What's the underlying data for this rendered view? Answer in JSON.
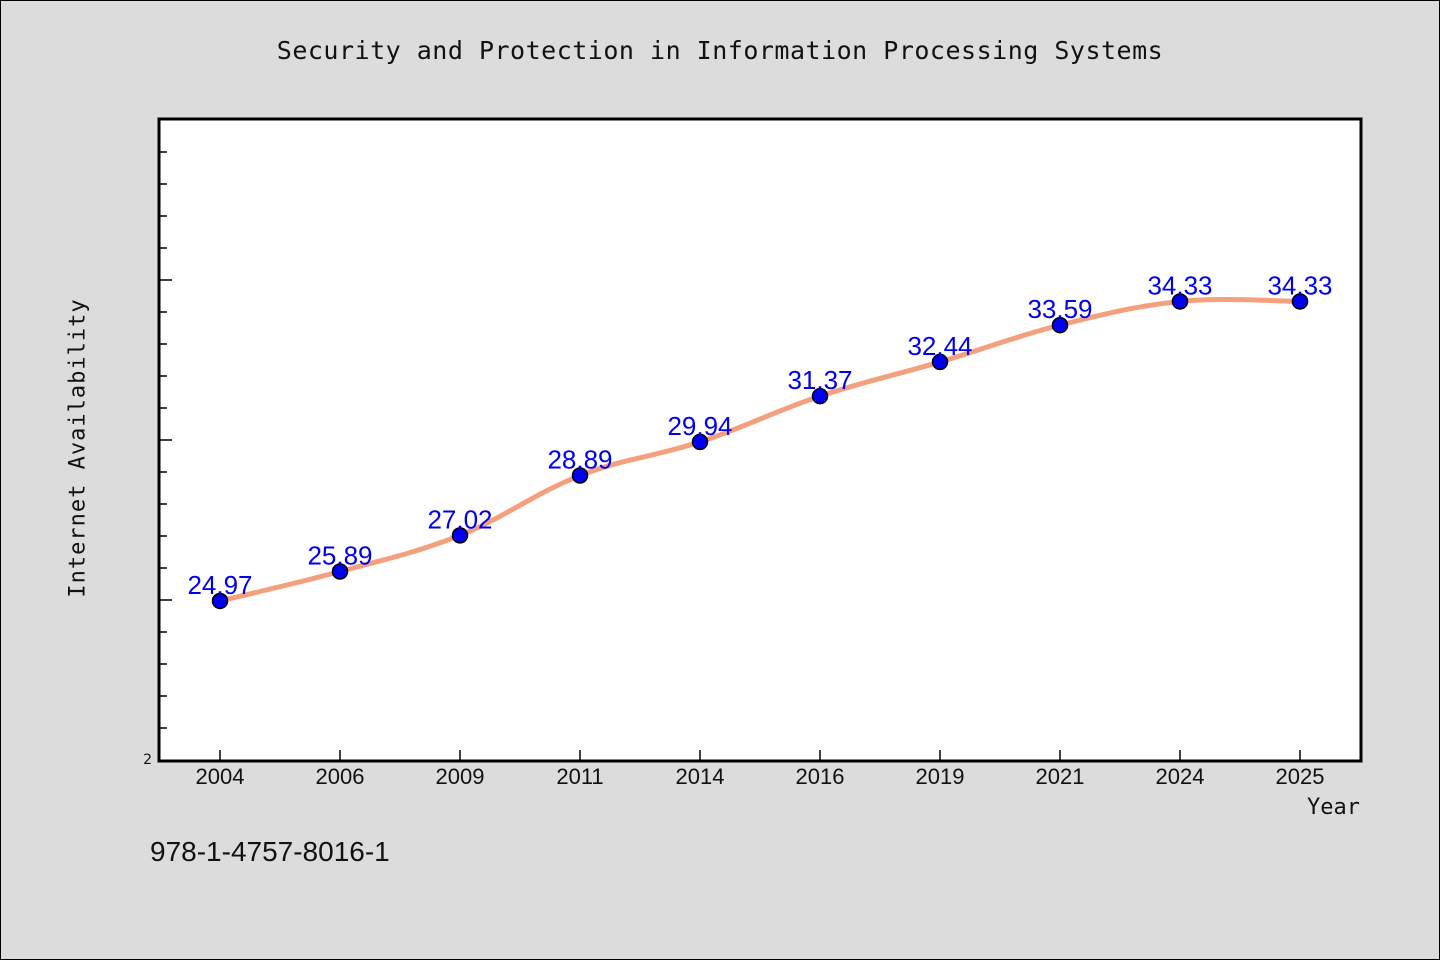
{
  "chart_data": {
    "type": "line",
    "title": "Security and Protection in Information Processing Systems",
    "xlabel": "Year",
    "ylabel": "Internet Availability",
    "categories": [
      "2004",
      "2006",
      "2009",
      "2011",
      "2014",
      "2016",
      "2019",
      "2021",
      "2024",
      "2025"
    ],
    "series": [
      {
        "values": [
          24.97,
          25.89,
          27.02,
          28.89,
          29.94,
          31.37,
          32.44,
          33.59,
          34.33,
          34.33
        ],
        "labels": [
          "24.97",
          "25.89",
          "27.02",
          "28.89",
          "29.94",
          "31.37",
          "32.44",
          "33.59",
          "34.33",
          "34.33"
        ]
      }
    ],
    "y_tick_labels": [
      "2"
    ],
    "ylim": [
      20,
      40
    ],
    "y_minor_step": 1,
    "grid": false,
    "line_color": "#f4a07e",
    "marker_color": "#0000ee",
    "label_color": "#0000ee"
  },
  "footer": {
    "isbn": "978-1-4757-8016-1"
  }
}
